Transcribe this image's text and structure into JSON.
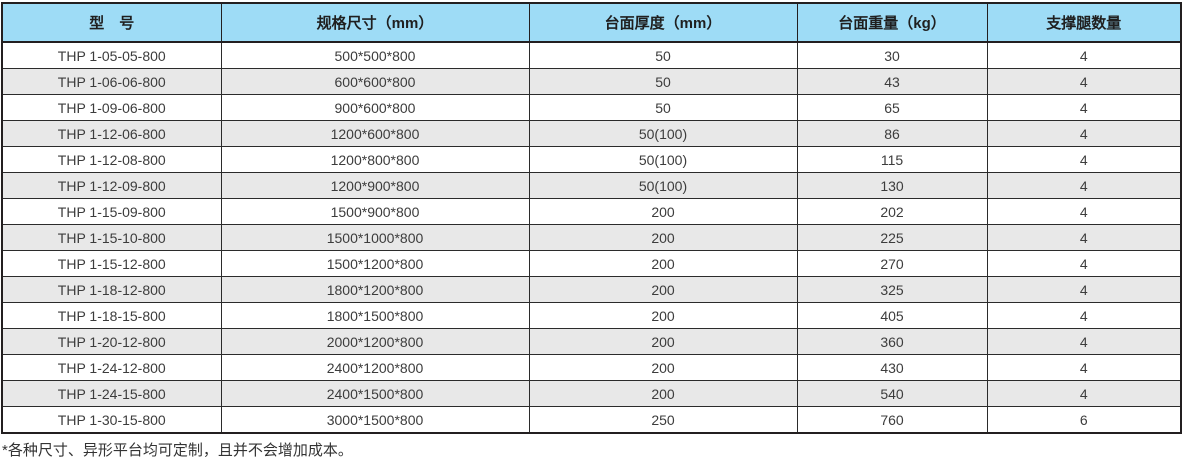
{
  "chart_data": {
    "type": "table",
    "title": "",
    "columns": [
      "型　号",
      "规格尺寸（mm）",
      "台面厚度（mm）",
      "台面重量（kg）",
      "支撑腿数量"
    ],
    "rows": [
      [
        "THP 1-05-05-800",
        "500*500*800",
        "50",
        "30",
        "4"
      ],
      [
        "THP 1-06-06-800",
        "600*600*800",
        "50",
        "43",
        "4"
      ],
      [
        "THP 1-09-06-800",
        "900*600*800",
        "50",
        "65",
        "4"
      ],
      [
        "THP 1-12-06-800",
        "1200*600*800",
        "50(100)",
        "86",
        "4"
      ],
      [
        "THP 1-12-08-800",
        "1200*800*800",
        "50(100)",
        "115",
        "4"
      ],
      [
        "THP 1-12-09-800",
        "1200*900*800",
        "50(100)",
        "130",
        "4"
      ],
      [
        "THP 1-15-09-800",
        "1500*900*800",
        "200",
        "202",
        "4"
      ],
      [
        "THP 1-15-10-800",
        "1500*1000*800",
        "200",
        "225",
        "4"
      ],
      [
        "THP 1-15-12-800",
        "1500*1200*800",
        "200",
        "270",
        "4"
      ],
      [
        "THP 1-18-12-800",
        "1800*1200*800",
        "200",
        "325",
        "4"
      ],
      [
        "THP 1-18-15-800",
        "1800*1500*800",
        "200",
        "405",
        "4"
      ],
      [
        "THP 1-20-12-800",
        "2000*1200*800",
        "200",
        "360",
        "4"
      ],
      [
        "THP 1-24-12-800",
        "2400*1200*800",
        "200",
        "430",
        "4"
      ],
      [
        "THP 1-24-15-800",
        "2400*1500*800",
        "200",
        "540",
        "4"
      ],
      [
        "THP 1-30-15-800",
        "3000*1500*800",
        "250",
        "760",
        "6"
      ]
    ],
    "layout": {
      "grid": true,
      "alternating_rows": true,
      "header_position": "top"
    }
  },
  "footnote": "*各种尺寸、异形平台均可定制，且并不会增加成本。",
  "colors": {
    "header_bg": "#9edcf6",
    "row_bg": "#ffffff",
    "alt_row_bg": "#e8e8e8",
    "border": "#231f20",
    "header_text": "#1f1f1f",
    "cell_text": "#3c3c3c"
  }
}
